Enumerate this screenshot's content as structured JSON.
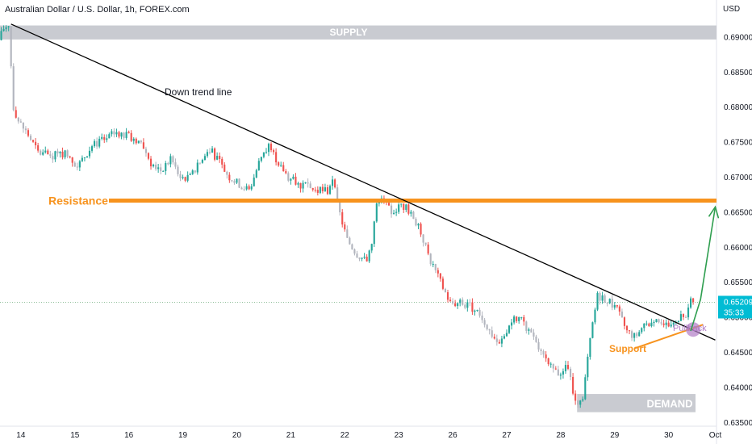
{
  "header": {
    "title": "Australian Dollar / U.S. Dollar, 1h, FOREX.com",
    "currency": "USD"
  },
  "price_tag": {
    "value": "0.65209",
    "countdown": "35:33",
    "color": "#00bcd4"
  },
  "annotations": {
    "supply": "SUPPLY",
    "demand": "DEMAND",
    "resistance": "Resistance",
    "support": "Support",
    "pullback": "Pullback",
    "trendline": "Down trend line"
  },
  "colors": {
    "up": "#26a69a",
    "down": "#ef5350",
    "zone": "#c9cbd1",
    "resistance": "#f7931e",
    "trendline": "#000000",
    "pullback": "#b07cc6",
    "arrow": "#2e9e4f"
  },
  "chart_data": {
    "type": "candlestick",
    "title": "Australian Dollar / U.S. Dollar, 1h, FOREX.com",
    "y_unit": "USD",
    "ylim": [
      0.6344,
      0.6927
    ],
    "y_ticks": [
      "0.69000",
      "0.68500",
      "0.68000",
      "0.67500",
      "0.67000",
      "0.66500",
      "0.66000",
      "0.65500",
      "0.65000",
      "0.64500",
      "0.64000",
      "0.63500"
    ],
    "x_ticks": [
      "14",
      "15",
      "16",
      "19",
      "20",
      "21",
      "22",
      "23",
      "26",
      "27",
      "28",
      "29",
      "30",
      "Oct"
    ],
    "last_price": 0.65209,
    "resistance_level": 0.6666,
    "supply_zone": [
      0.6896,
      0.6916
    ],
    "demand_zone": [
      0.6364,
      0.639
    ],
    "path": [
      [
        0,
        0.6895
      ],
      [
        2,
        0.6912
      ],
      [
        4,
        0.6918
      ],
      [
        6,
        0.68
      ],
      [
        8,
        0.678
      ],
      [
        12,
        0.676
      ],
      [
        16,
        0.6735
      ],
      [
        22,
        0.673
      ],
      [
        28,
        0.6735
      ],
      [
        32,
        0.6715
      ],
      [
        38,
        0.6745
      ],
      [
        44,
        0.6755
      ],
      [
        48,
        0.6765
      ],
      [
        54,
        0.6755
      ],
      [
        58,
        0.675
      ],
      [
        62,
        0.672
      ],
      [
        66,
        0.671
      ],
      [
        70,
        0.6725
      ],
      [
        74,
        0.67
      ],
      [
        78,
        0.67
      ],
      [
        82,
        0.672
      ],
      [
        86,
        0.674
      ],
      [
        90,
        0.672
      ],
      [
        94,
        0.67
      ],
      [
        98,
        0.669
      ],
      [
        102,
        0.668
      ],
      [
        106,
        0.672
      ],
      [
        110,
        0.6745
      ],
      [
        114,
        0.672
      ],
      [
        118,
        0.67
      ],
      [
        122,
        0.669
      ],
      [
        126,
        0.6685
      ],
      [
        130,
        0.668
      ],
      [
        134,
        0.668
      ],
      [
        136,
        0.6699
      ],
      [
        138,
        0.666
      ],
      [
        142,
        0.661
      ],
      [
        146,
        0.659
      ],
      [
        150,
        0.658
      ],
      [
        152,
        0.661
      ],
      [
        154,
        0.666
      ],
      [
        156,
        0.6665
      ],
      [
        160,
        0.665
      ],
      [
        164,
        0.666
      ],
      [
        168,
        0.665
      ],
      [
        172,
        0.662
      ],
      [
        176,
        0.658
      ],
      [
        180,
        0.655
      ],
      [
        184,
        0.652
      ],
      [
        188,
        0.652
      ],
      [
        192,
        0.6515
      ],
      [
        196,
        0.6505
      ],
      [
        200,
        0.648
      ],
      [
        204,
        0.646
      ],
      [
        208,
        0.649
      ],
      [
        212,
        0.65
      ],
      [
        216,
        0.648
      ],
      [
        220,
        0.6455
      ],
      [
        224,
        0.643
      ],
      [
        228,
        0.642
      ],
      [
        232,
        0.643
      ],
      [
        234,
        0.639
      ],
      [
        236,
        0.637
      ],
      [
        238,
        0.638
      ],
      [
        240,
        0.644
      ],
      [
        242,
        0.649
      ],
      [
        244,
        0.653
      ],
      [
        248,
        0.6525
      ],
      [
        252,
        0.651
      ],
      [
        256,
        0.648
      ],
      [
        260,
        0.647
      ],
      [
        264,
        0.649
      ],
      [
        268,
        0.65
      ],
      [
        272,
        0.649
      ],
      [
        276,
        0.649
      ],
      [
        278,
        0.651
      ],
      [
        280,
        0.65
      ],
      [
        282,
        0.6521
      ]
    ],
    "x_tick_bar_index": [
      8,
      30,
      52,
      74,
      96,
      118,
      140,
      162,
      184,
      206,
      228,
      250,
      272,
      291
    ],
    "trendline": [
      [
        4,
        0.6918
      ],
      [
        291,
        0.6467
      ]
    ],
    "support_line": [
      [
        258,
        0.6455
      ],
      [
        286,
        0.6489
      ]
    ],
    "projection": [
      [
        281,
        0.648
      ],
      [
        285,
        0.6525
      ],
      [
        291,
        0.6657
      ]
    ]
  }
}
